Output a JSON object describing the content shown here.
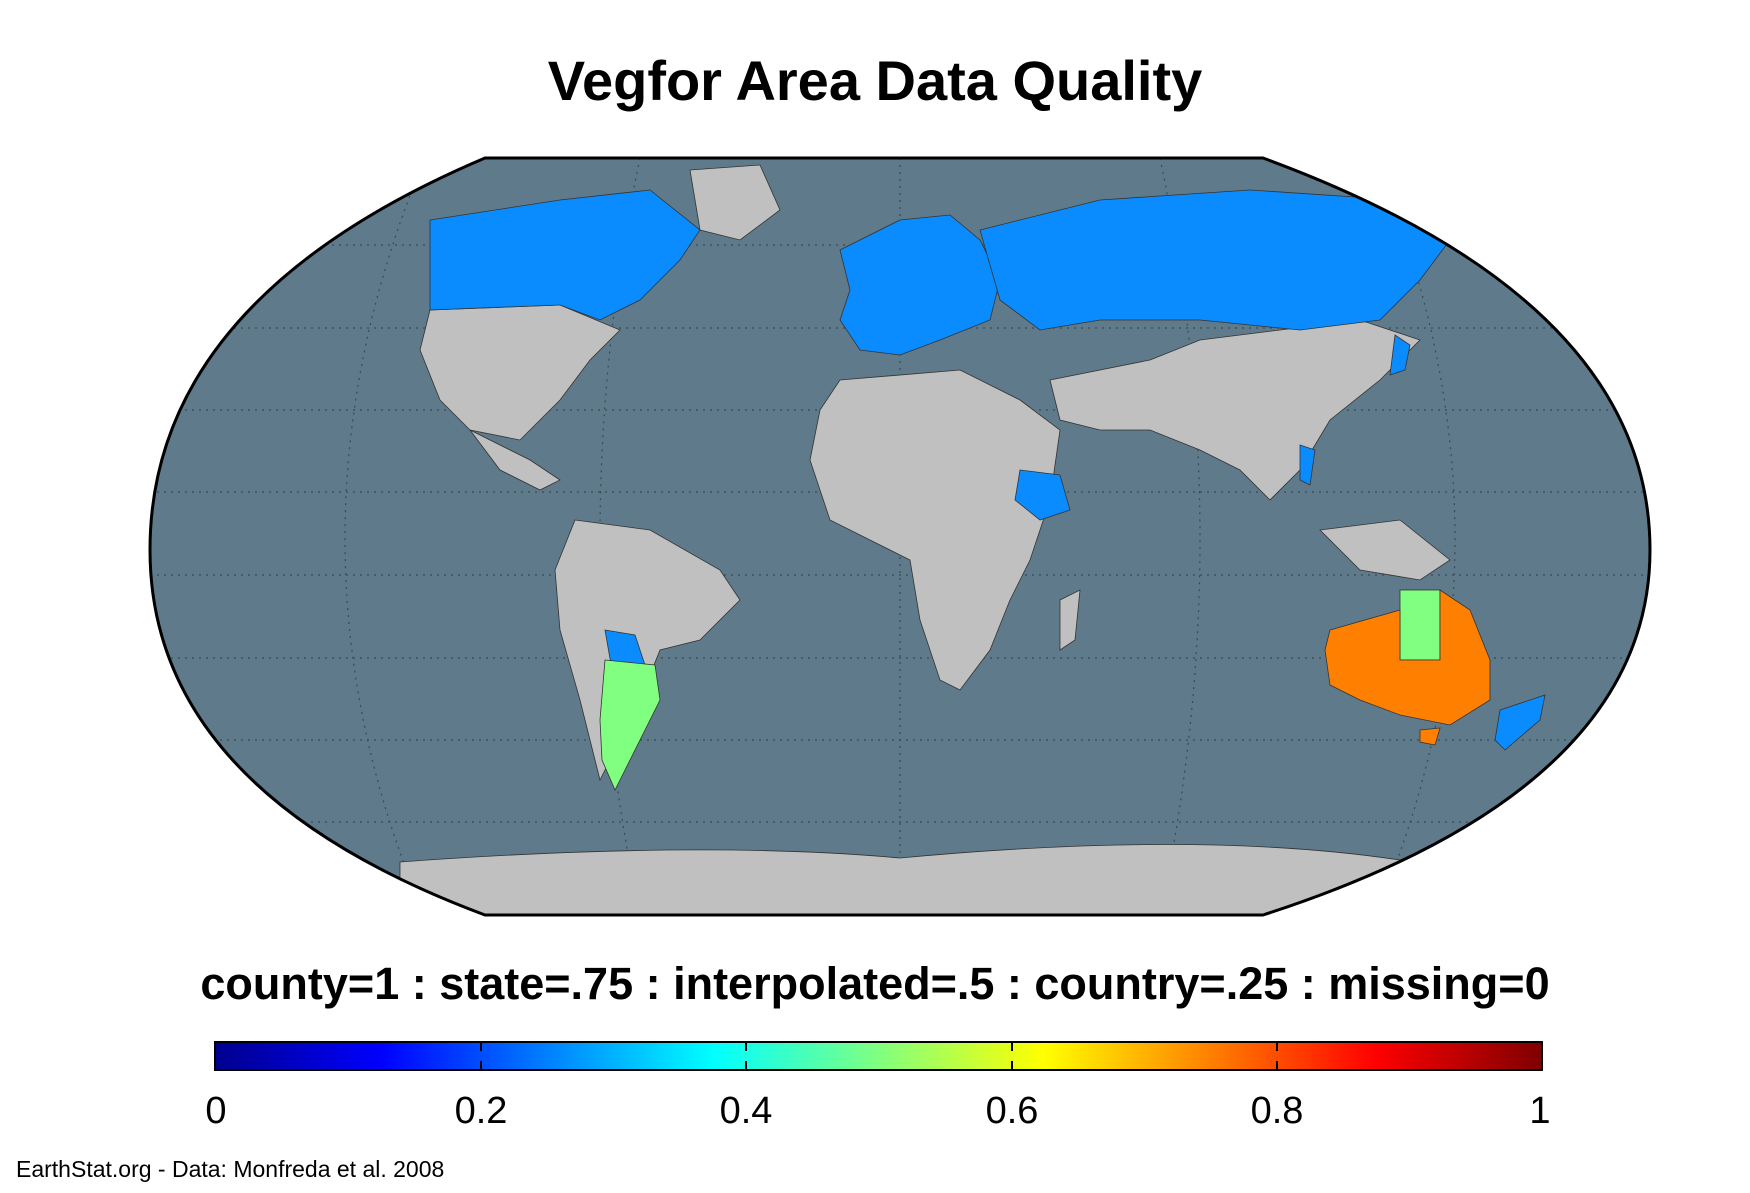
{
  "title": "Vegfor Area Data Quality",
  "legend_caption": "county=1 : state=.75 : interpolated=.5 : country=.25 : missing=0",
  "colorbar": {
    "min": 0,
    "max": 1,
    "tick_labels": [
      "0",
      "0.2",
      "0.4",
      "0.6",
      "0.8",
      "1"
    ]
  },
  "credit": "EarthStat.org - Data: Monfreda et al. 2008",
  "colors": {
    "ocean": "#5f7a8a",
    "land_missing": "#c0c0c0",
    "country_quality": "#0a8cff",
    "interpolated_quality": "#80ff80",
    "state_quality": "#ff8000"
  },
  "regions": [
    {
      "name": "Canada",
      "value": 0.25
    },
    {
      "name": "Europe",
      "value": 0.25
    },
    {
      "name": "Russia",
      "value": 0.25
    },
    {
      "name": "Japan",
      "value": 0.25
    },
    {
      "name": "Ethiopia",
      "value": 0.25
    },
    {
      "name": "Vietnam",
      "value": 0.25
    },
    {
      "name": "New Zealand",
      "value": 0.25
    },
    {
      "name": "Argentina",
      "value": 0.5
    },
    {
      "name": "Australia",
      "value": 0.75
    }
  ]
}
